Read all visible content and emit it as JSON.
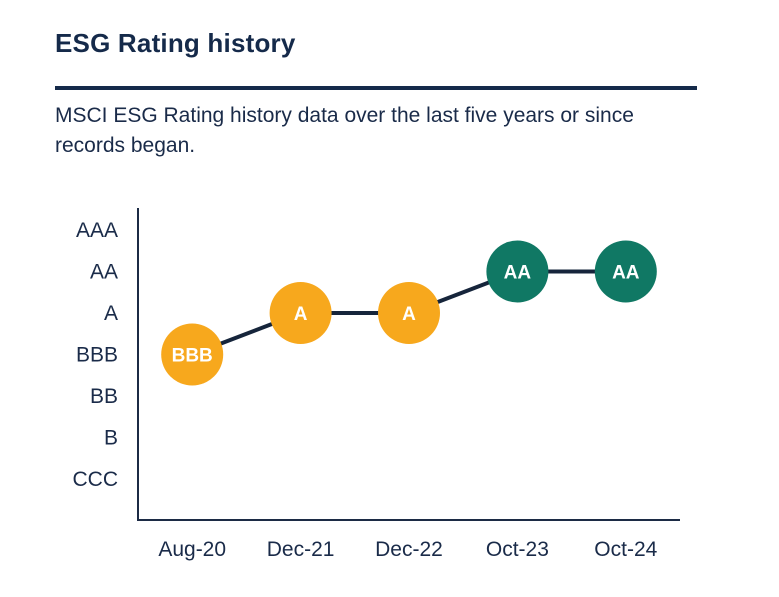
{
  "page": {
    "title": "ESG Rating history",
    "subtitle": "MSCI ESG Rating history data over the last five years or since records began.",
    "subtitle_lines": [
      "MSCI ESG Rating history data over the last five years or since",
      "records began."
    ]
  },
  "chart_data": {
    "type": "line",
    "title": "ESG Rating history",
    "categories": [
      "Aug-20",
      "Dec-21",
      "Dec-22",
      "Oct-23",
      "Oct-24"
    ],
    "y_axis_labels_top_to_bottom": [
      "AAA",
      "AA",
      "A",
      "BBB",
      "BB",
      "B",
      "CCC"
    ],
    "series": [
      {
        "name": "MSCI ESG Rating",
        "values": [
          "BBB",
          "A",
          "A",
          "AA",
          "AA"
        ]
      }
    ],
    "point_colors": [
      "#F7A81D",
      "#F7A81D",
      "#F7A81D",
      "#107864",
      "#107864"
    ],
    "xlabel": "",
    "ylabel": "",
    "grid": false,
    "legend": "none",
    "marker": "labeled-circle"
  },
  "colors": {
    "heading_text": "#152A4A",
    "body_text": "#1A2B49",
    "divider": "#152A4A",
    "axis": "#1C2B45",
    "connector": "#16253B",
    "amber": "#F7A81D",
    "teal": "#107864",
    "point_label_text": "#FFFFFF"
  }
}
